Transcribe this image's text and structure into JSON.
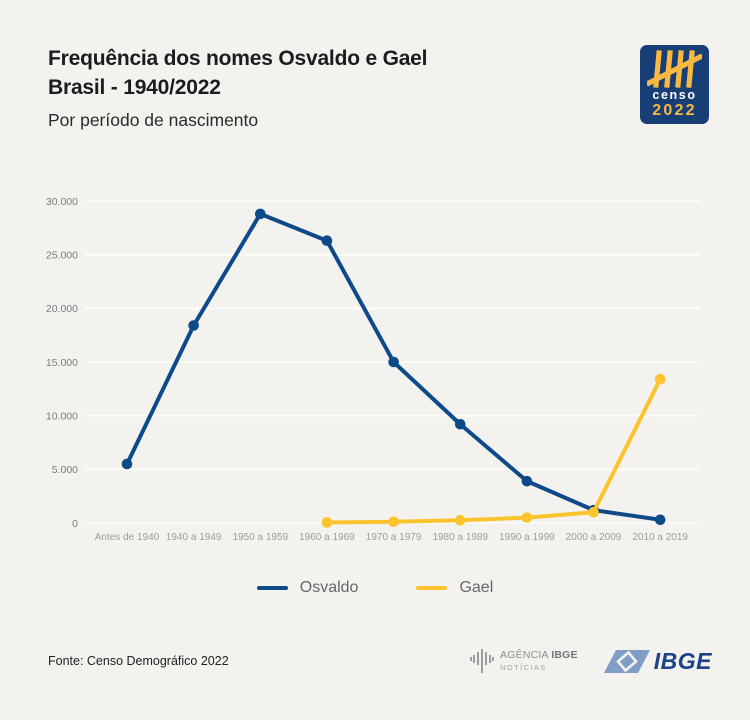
{
  "header": {
    "title_line1": "Frequência dos nomes Osvaldo e Gael",
    "title_line2": "Brasil - 1940/2022",
    "subtitle": "Por período de nascimento"
  },
  "censo_logo": {
    "word": "censo",
    "year": "2022",
    "bg_color": "#173e75",
    "accent_color": "#f9b940"
  },
  "chart_data": {
    "type": "line",
    "categories": [
      "Antes de 1940",
      "1940 a 1949",
      "1950 a 1959",
      "1960 a 1969",
      "1970 a 1979",
      "1980 a 1989",
      "1990 a 1999",
      "2000 a 2009",
      "2010 a 2019"
    ],
    "series": [
      {
        "name": "Osvaldo",
        "color": "#0e4a89",
        "values": [
          5500,
          18400,
          28800,
          26300,
          15000,
          9200,
          3900,
          1200,
          300
        ]
      },
      {
        "name": "Gael",
        "color": "#fcc32d",
        "values": [
          null,
          null,
          null,
          50,
          120,
          260,
          500,
          1000,
          13400
        ]
      }
    ],
    "title": "Frequência dos nomes Osvaldo e Gael - Brasil 1940/2022",
    "xlabel": "",
    "ylabel": "",
    "ylim": [
      0,
      30000
    ],
    "ytick_step": 5000,
    "ytick_labels": [
      "0",
      "5.000",
      "10.000",
      "15.000",
      "20.000",
      "25.000",
      "30.000"
    ],
    "grid": true,
    "legend_position": "bottom"
  },
  "legend": [
    {
      "label": "Osvaldo",
      "color": "#0e4a89"
    },
    {
      "label": "Gael",
      "color": "#fcc32d"
    }
  ],
  "footer": {
    "source": "Fonte: Censo Demográfico 2022",
    "agencia_name": "AGÊNCIA ",
    "agencia_ibge": "IBGE",
    "agencia_sub": "NOTÍCIAS",
    "ibge_name": "IBGE"
  }
}
